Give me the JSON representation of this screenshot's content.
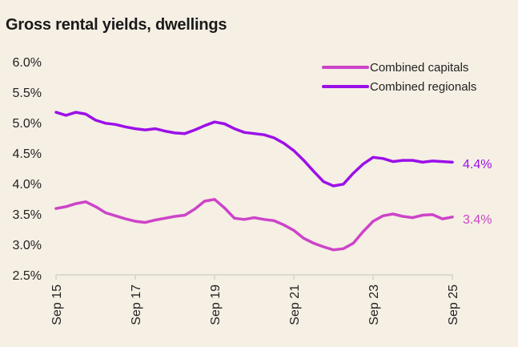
{
  "chart_data": {
    "type": "line",
    "title": "Gross rental yields, dwellings",
    "xlabel": "",
    "ylabel": "",
    "ylim": [
      2.5,
      6.0
    ],
    "yticks": [
      "2.5%",
      "3.0%",
      "3.5%",
      "4.0%",
      "4.5%",
      "5.0%",
      "5.5%",
      "6.0%"
    ],
    "ytick_values": [
      2.5,
      3.0,
      3.5,
      4.0,
      4.5,
      5.0,
      5.5,
      6.0
    ],
    "xticks": [
      "Sep 15",
      "Sep 17",
      "Sep 19",
      "Sep 21",
      "Sep 23",
      "Sep 25"
    ],
    "xtick_values": [
      2015.75,
      2017.75,
      2019.75,
      2021.75,
      2023.75,
      2025.75
    ],
    "xlim": [
      2015.75,
      2025.75
    ],
    "legend_position": "top-right",
    "x": [
      2015.75,
      2016.0,
      2016.25,
      2016.5,
      2016.75,
      2017.0,
      2017.25,
      2017.5,
      2017.75,
      2018.0,
      2018.25,
      2018.5,
      2018.75,
      2019.0,
      2019.25,
      2019.5,
      2019.75,
      2020.0,
      2020.25,
      2020.5,
      2020.75,
      2021.0,
      2021.25,
      2021.5,
      2021.75,
      2022.0,
      2022.25,
      2022.5,
      2022.75,
      2023.0,
      2023.25,
      2023.5,
      2023.75,
      2024.0,
      2024.25,
      2024.5,
      2024.75,
      2025.0,
      2025.25,
      2025.5,
      2025.75
    ],
    "series": [
      {
        "name": "Combined capitals",
        "color": "#cc44c8",
        "end_label": "3.4%",
        "values": [
          3.59,
          3.62,
          3.67,
          3.7,
          3.62,
          3.52,
          3.47,
          3.42,
          3.38,
          3.36,
          3.4,
          3.43,
          3.46,
          3.48,
          3.58,
          3.71,
          3.74,
          3.6,
          3.43,
          3.41,
          3.44,
          3.41,
          3.39,
          3.32,
          3.23,
          3.1,
          3.02,
          2.96,
          2.91,
          2.93,
          3.02,
          3.21,
          3.38,
          3.47,
          3.5,
          3.46,
          3.44,
          3.48,
          3.49,
          3.42,
          3.45
        ]
      },
      {
        "name": "Combined regionals",
        "color": "#9b10e8",
        "end_label": "4.4%",
        "values": [
          5.17,
          5.12,
          5.17,
          5.14,
          5.04,
          4.99,
          4.97,
          4.93,
          4.9,
          4.88,
          4.9,
          4.86,
          4.83,
          4.82,
          4.88,
          4.95,
          5.01,
          4.98,
          4.9,
          4.84,
          4.82,
          4.8,
          4.75,
          4.66,
          4.54,
          4.38,
          4.2,
          4.03,
          3.96,
          3.99,
          4.17,
          4.32,
          4.43,
          4.41,
          4.36,
          4.38,
          4.38,
          4.35,
          4.37,
          4.36,
          4.35
        ]
      }
    ]
  }
}
